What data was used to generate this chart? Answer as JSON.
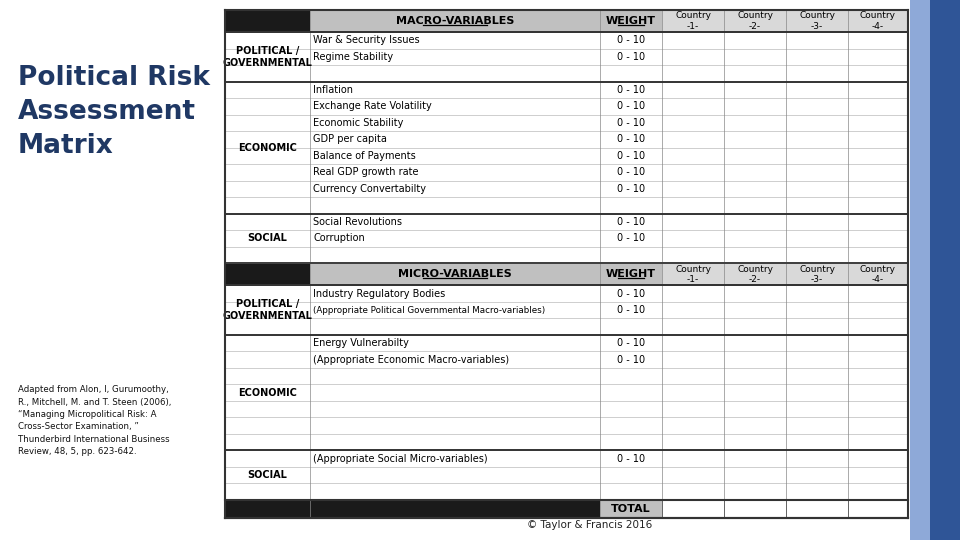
{
  "title": "Political Risk\nAssessment\nMatrix",
  "title_color": "#1F3864",
  "citation": "Adapted from Alon, I, Gurumoothy,\nR., Mitchell, M. and T. Steen (2006),\n“Managing Micropolitical Risk: A\nCross-Sector Examination, ”\nThunderbird International Business\nReview, 48, 5, pp. 623-642.",
  "copyright": "© Taylor & Francis 2016",
  "bg_color": "#FFFFFF",
  "dark_header_bg": "#1A1A1A",
  "dark_header_fg": "#FFFFFF",
  "grey_header_bg": "#C0C0C0",
  "right_sidebar_color": "#2F5597",
  "right_sidebar2_color": "#8EA9D8",
  "col_header_row": [
    "",
    "MACRO-VARIABLES",
    "WEIGHT",
    "Country\n-1-",
    "Country\n-2-",
    "Country\n-3-",
    "Country\n-4-"
  ],
  "macro_rows": [
    [
      "POLITICAL /\nGOVERNMENTAL",
      "War & Security Issues",
      "0 - 10"
    ],
    [
      "",
      "Regime Stability",
      "0 - 10"
    ],
    [
      "",
      "",
      ""
    ],
    [
      "ECONOMIC",
      "Inflation",
      "0 - 10"
    ],
    [
      "",
      "Exchange Rate Volatility",
      "0 - 10"
    ],
    [
      "",
      "Economic Stability",
      "0 - 10"
    ],
    [
      "",
      "GDP per capita",
      "0 - 10"
    ],
    [
      "",
      "Balance of Payments",
      "0 - 10"
    ],
    [
      "",
      "Real GDP growth rate",
      "0 - 10"
    ],
    [
      "",
      "Currency Convertabilty",
      "0 - 10"
    ],
    [
      "",
      "",
      ""
    ],
    [
      "SOCIAL",
      "Social Revolutions",
      "0 - 10"
    ],
    [
      "",
      "Corruption",
      "0 - 10"
    ],
    [
      "",
      "",
      ""
    ]
  ],
  "micro_header_row": [
    "",
    "MICRO-VARIABLES",
    "WEIGHT",
    "Country\n-1-",
    "Country\n-2-",
    "Country\n-3-",
    "Country\n-4-"
  ],
  "micro_rows": [
    [
      "POLITICAL /\nGOVERNMENTAL",
      "Industry Regulatory Bodies",
      "0 - 10"
    ],
    [
      "",
      "(Appropriate Political Governmental Macro-variables)",
      "0 - 10"
    ],
    [
      "",
      "",
      ""
    ],
    [
      "ECONOMIC",
      "Energy Vulnerabilty",
      "0 - 10"
    ],
    [
      "",
      "(Appropriate Economic Macro-variables)",
      "0 - 10"
    ],
    [
      "",
      "",
      ""
    ],
    [
      "",
      "",
      ""
    ],
    [
      "",
      "",
      ""
    ],
    [
      "",
      "",
      ""
    ],
    [
      "",
      "",
      ""
    ],
    [
      "SOCIAL",
      "(Appropriate Social Micro-variables)",
      "0 - 10"
    ],
    [
      "",
      "",
      ""
    ],
    [
      "",
      "",
      ""
    ]
  ],
  "total_row": [
    "",
    "",
    "TOTAL"
  ]
}
